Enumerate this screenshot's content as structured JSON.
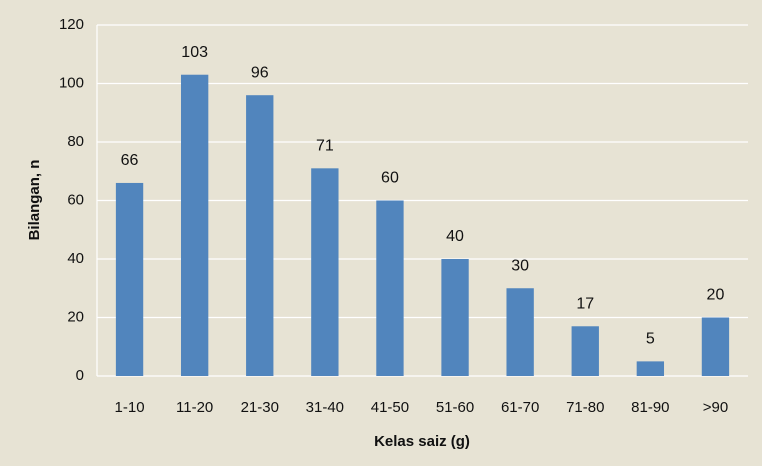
{
  "chart_data": {
    "type": "bar",
    "xlabel": "Kelas saiz (g)",
    "ylabel": "Bilangan, n",
    "categories": [
      "1-10",
      "11-20",
      "21-30",
      "31-40",
      "41-50",
      "51-60",
      "61-70",
      "71-80",
      "81-90",
      ">90"
    ],
    "values": [
      66,
      103,
      96,
      71,
      60,
      40,
      30,
      17,
      5,
      20
    ],
    "color": "#5185bd",
    "ylim": [
      0,
      120
    ],
    "yticks": [
      0,
      20,
      40,
      60,
      80,
      100,
      120
    ],
    "grid": true
  }
}
